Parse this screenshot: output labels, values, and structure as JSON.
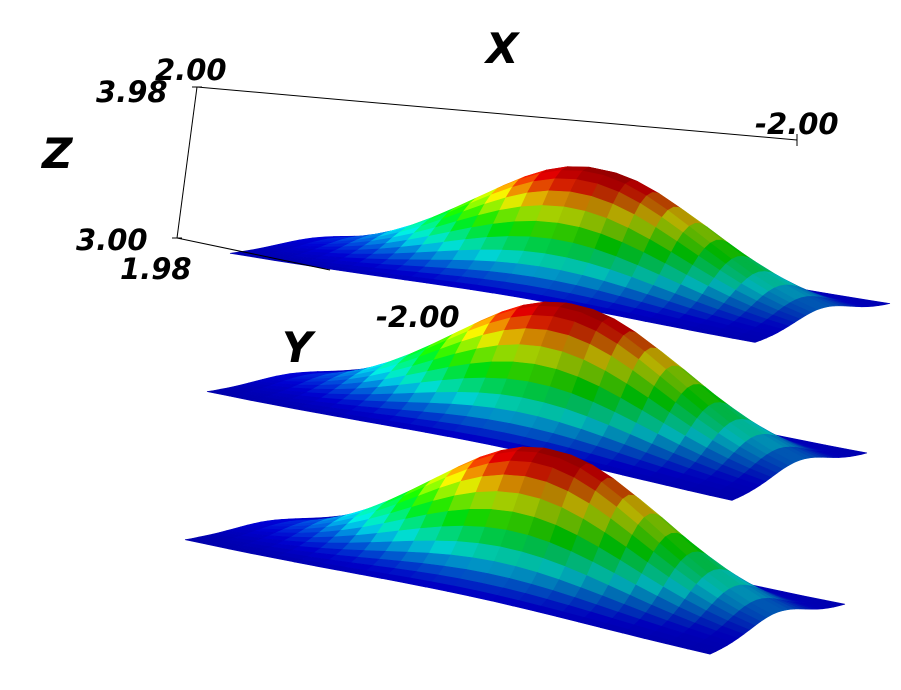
{
  "chart_data": {
    "type": "surface",
    "title": "",
    "axes": {
      "x": {
        "label": "X",
        "tick_labels": [
          "2.00",
          "-2.00"
        ],
        "range": [
          -2.0,
          2.0
        ]
      },
      "y": {
        "label": "Y",
        "tick_labels": [
          "1.98",
          "-2.00"
        ],
        "range": [
          -2.0,
          1.98
        ]
      },
      "z": {
        "label": "Z",
        "tick_labels": [
          "3.00",
          "3.98"
        ],
        "range": [
          3.0,
          3.98
        ]
      }
    },
    "surfaces": [
      {
        "function": "gaussian",
        "peak": 1.0,
        "colormap": "jet"
      },
      {
        "function": "gaussian",
        "peak": 1.0,
        "colormap": "jet"
      },
      {
        "function": "gaussian",
        "peak": 1.0,
        "colormap": "jet"
      }
    ],
    "colormap_colors": [
      "#00008f",
      "#0000ff",
      "#00ffff",
      "#00ff00",
      "#ffff00",
      "#ff0000",
      "#800000"
    ],
    "grid": false,
    "legend": "none"
  }
}
